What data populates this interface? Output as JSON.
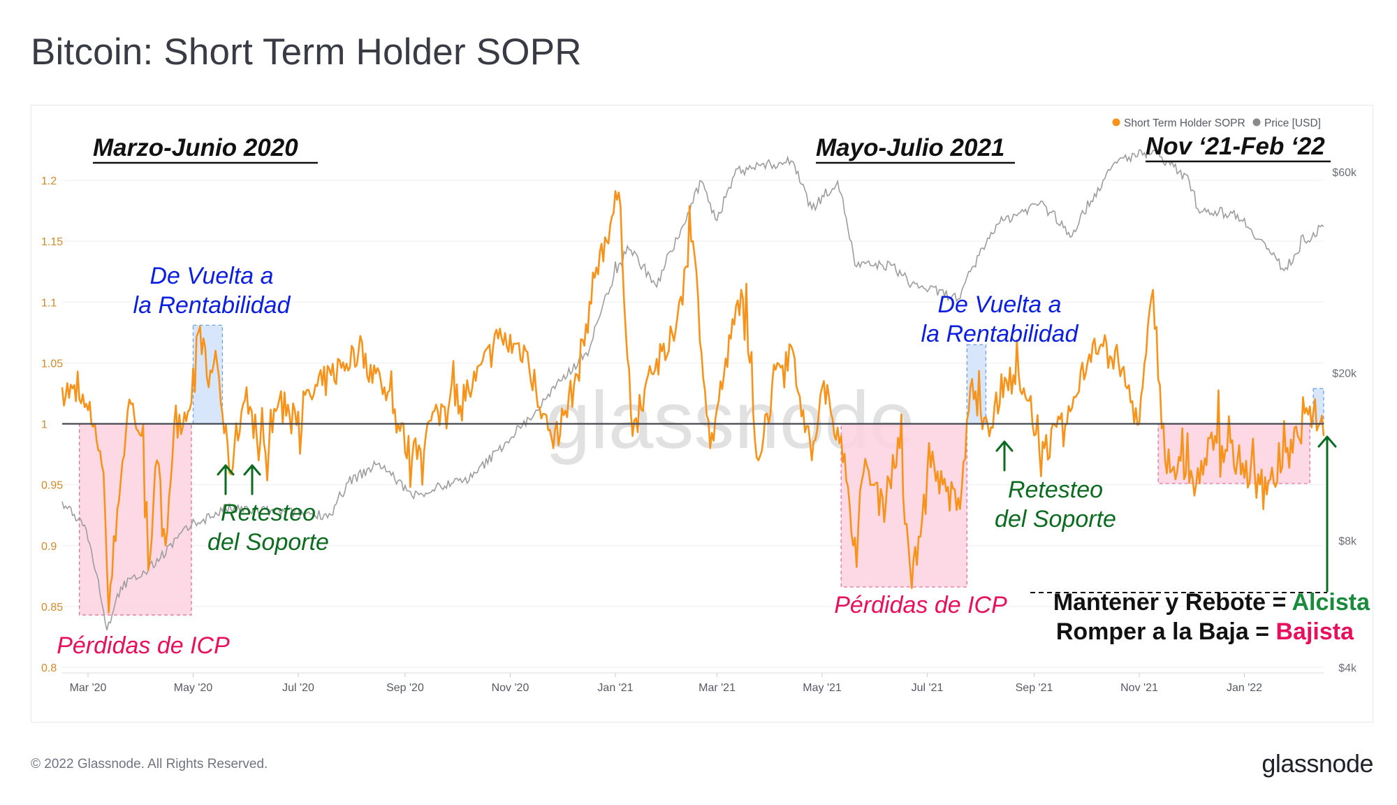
{
  "title": "Bitcoin: Short Term Holder SOPR",
  "footer": {
    "copyright": "© 2022 Glassnode. All Rights Reserved.",
    "logo": "glassnode"
  },
  "watermark": "glassnode",
  "colors": {
    "sopr": "#f7931a",
    "price": "#9a9a9a",
    "loss_zone": "#fcd2e1",
    "loss_border": "#e8709c",
    "profit_zone": "#d4e3fb",
    "profit_border": "#6f9fe0",
    "bullish": "#1a8a3c",
    "bearish": "#e8105a",
    "blue_text": "#0b1fe0",
    "green_text": "#0b6b1e"
  },
  "chart_data": {
    "type": "line",
    "title": "Bitcoin: Short Term Holder SOPR",
    "legend": [
      {
        "name": "Short Term Holder SOPR",
        "color": "#f7931a"
      },
      {
        "name": "Price [USD]",
        "color": "#8a8a8a"
      }
    ],
    "legend_position": "top-right",
    "x_ticks": [
      "Mar '20",
      "May '20",
      "Jul '20",
      "Sep '20",
      "Nov '20",
      "Jan '21",
      "Mar '21",
      "May '21",
      "Jul '21",
      "Sep '21",
      "Nov '21",
      "Jan '22"
    ],
    "x_range": [
      "2020-02-15",
      "2022-02-16"
    ],
    "y_left": {
      "label": "Short Term Holder SOPR",
      "ticks": [
        "0.8",
        "0.85",
        "0.9",
        "0.95",
        "1",
        "1.05",
        "1.1",
        "1.15",
        "1.2"
      ],
      "range": [
        0.8,
        1.2
      ],
      "baseline": 1.0
    },
    "y_right": {
      "label": "Price [USD]",
      "scale": "log",
      "ticks": [
        "$4k",
        "$8k",
        "$20k",
        "$60k"
      ]
    },
    "series": [
      {
        "name": "Short Term Holder SOPR",
        "axis": "left",
        "points": [
          [
            "2020-02-15",
            1.03
          ],
          [
            "2020-02-25",
            1.02
          ],
          [
            "2020-03-05",
            1.0
          ],
          [
            "2020-03-10",
            0.96
          ],
          [
            "2020-03-13",
            0.845
          ],
          [
            "2020-03-18",
            0.93
          ],
          [
            "2020-03-25",
            1.02
          ],
          [
            "2020-04-01",
            0.99
          ],
          [
            "2020-04-05",
            0.88
          ],
          [
            "2020-04-10",
            0.97
          ],
          [
            "2020-04-15",
            0.9
          ],
          [
            "2020-04-20",
            1.0
          ],
          [
            "2020-04-28",
            1.01
          ],
          [
            "2020-05-05",
            1.08
          ],
          [
            "2020-05-10",
            1.03
          ],
          [
            "2020-05-14",
            1.06
          ],
          [
            "2020-05-22",
            0.96
          ],
          [
            "2020-06-01",
            1.03
          ],
          [
            "2020-06-08",
            0.97
          ],
          [
            "2020-06-20",
            1.02
          ],
          [
            "2020-07-01",
            1.01
          ],
          [
            "2020-07-20",
            1.04
          ],
          [
            "2020-08-05",
            1.06
          ],
          [
            "2020-08-20",
            1.03
          ],
          [
            "2020-09-05",
            0.97
          ],
          [
            "2020-09-20",
            1.01
          ],
          [
            "2020-10-10",
            1.03
          ],
          [
            "2020-10-25",
            1.07
          ],
          [
            "2020-11-10",
            1.06
          ],
          [
            "2020-11-26",
            0.98
          ],
          [
            "2020-12-10",
            1.04
          ],
          [
            "2020-12-20",
            1.12
          ],
          [
            "2021-01-03",
            1.19
          ],
          [
            "2021-01-11",
            0.99
          ],
          [
            "2021-01-20",
            1.04
          ],
          [
            "2021-02-01",
            1.06
          ],
          [
            "2021-02-15",
            1.15
          ],
          [
            "2021-02-25",
            0.98
          ],
          [
            "2021-03-05",
            1.04
          ],
          [
            "2021-03-15",
            1.11
          ],
          [
            "2021-03-25",
            0.97
          ],
          [
            "2021-04-05",
            1.05
          ],
          [
            "2021-04-14",
            1.06
          ],
          [
            "2021-04-25",
            0.97
          ],
          [
            "2021-05-01",
            1.03
          ],
          [
            "2021-05-12",
            0.99
          ],
          [
            "2021-05-19",
            0.9
          ],
          [
            "2021-05-25",
            0.96
          ],
          [
            "2021-06-05",
            0.94
          ],
          [
            "2021-06-15",
            0.98
          ],
          [
            "2021-06-22",
            0.865
          ],
          [
            "2021-07-01",
            0.96
          ],
          [
            "2021-07-10",
            0.95
          ],
          [
            "2021-07-20",
            0.93
          ],
          [
            "2021-07-26",
            1.03
          ],
          [
            "2021-08-05",
            1.0
          ],
          [
            "2021-08-20",
            1.04
          ],
          [
            "2021-09-07",
            0.98
          ],
          [
            "2021-09-20",
            1.0
          ],
          [
            "2021-10-06",
            1.07
          ],
          [
            "2021-10-20",
            1.05
          ],
          [
            "2021-11-01",
            1.0
          ],
          [
            "2021-11-09",
            1.11
          ],
          [
            "2021-11-16",
            0.97
          ],
          [
            "2021-12-04",
            0.95
          ],
          [
            "2021-12-15",
            0.99
          ],
          [
            "2021-12-28",
            0.97
          ],
          [
            "2022-01-10",
            0.95
          ],
          [
            "2022-01-22",
            0.96
          ],
          [
            "2022-02-01",
            0.99
          ],
          [
            "2022-02-10",
            1.01
          ],
          [
            "2022-02-16",
            0.99
          ]
        ]
      },
      {
        "name": "Price [USD]",
        "axis": "right",
        "points": [
          [
            "2020-02-15",
            9900
          ],
          [
            "2020-02-28",
            8700
          ],
          [
            "2020-03-12",
            4900
          ],
          [
            "2020-03-20",
            6200
          ],
          [
            "2020-04-05",
            6800
          ],
          [
            "2020-04-30",
            8700
          ],
          [
            "2020-05-20",
            9500
          ],
          [
            "2020-06-15",
            9400
          ],
          [
            "2020-07-20",
            9200
          ],
          [
            "2020-07-30",
            11000
          ],
          [
            "2020-08-17",
            12200
          ],
          [
            "2020-09-05",
            10200
          ],
          [
            "2020-10-10",
            11300
          ],
          [
            "2020-10-25",
            13100
          ],
          [
            "2020-11-15",
            16000
          ],
          [
            "2020-12-01",
            19200
          ],
          [
            "2020-12-17",
            22800
          ],
          [
            "2021-01-08",
            40000
          ],
          [
            "2021-01-25",
            32000
          ],
          [
            "2021-02-10",
            45000
          ],
          [
            "2021-02-20",
            57000
          ],
          [
            "2021-03-01",
            46000
          ],
          [
            "2021-03-13",
            61000
          ],
          [
            "2021-04-14",
            63500
          ],
          [
            "2021-04-25",
            49000
          ],
          [
            "2021-05-10",
            57000
          ],
          [
            "2021-05-20",
            36000
          ],
          [
            "2021-06-10",
            36000
          ],
          [
            "2021-06-22",
            32500
          ],
          [
            "2021-07-20",
            30000
          ],
          [
            "2021-08-10",
            45000
          ],
          [
            "2021-09-06",
            51000
          ],
          [
            "2021-09-22",
            42000
          ],
          [
            "2021-10-20",
            64000
          ],
          [
            "2021-11-09",
            67500
          ],
          [
            "2021-11-30",
            57000
          ],
          [
            "2021-12-05",
            49000
          ],
          [
            "2021-12-28",
            47500
          ],
          [
            "2022-01-10",
            41500
          ],
          [
            "2022-01-24",
            35000
          ],
          [
            "2022-02-05",
            41000
          ],
          [
            "2022-02-16",
            44500
          ]
        ]
      }
    ],
    "loss_zones": [
      {
        "from": "2020-02-25",
        "to": "2020-04-30",
        "y_min": 0.843,
        "y_max": 1.0
      },
      {
        "from": "2021-05-12",
        "to": "2021-07-24",
        "y_min": 0.866,
        "y_max": 1.0
      },
      {
        "from": "2021-11-12",
        "to": "2022-02-08",
        "y_min": 0.951,
        "y_max": 1.0
      }
    ],
    "profit_zones": [
      {
        "from": "2020-05-01",
        "to": "2020-05-18",
        "y_min": 1.0,
        "y_max": 1.081
      },
      {
        "from": "2021-07-24",
        "to": "2021-08-04",
        "y_min": 1.0,
        "y_max": 1.065
      },
      {
        "from": "2022-02-10",
        "to": "2022-02-16",
        "y_min": 1.0,
        "y_max": 1.029
      }
    ],
    "annotations": {
      "period_headers": [
        "Marzo-Junio 2020",
        "Mayo-Julio 2021",
        "Nov ‘21-Feb ‘22"
      ],
      "profit_label_line1": "De Vuelta a",
      "profit_label_line2": "la Rentabilidad",
      "retest_line1": "Retesteo",
      "retest_line2": "del Soporte",
      "loss_label": "Pérdidas de ICP",
      "rule1_text": "Mantener y Rebote = ",
      "rule1_word": "Alcista",
      "rule2_text": "Romper a la Baja = ",
      "rule2_word": "Bajista"
    }
  }
}
